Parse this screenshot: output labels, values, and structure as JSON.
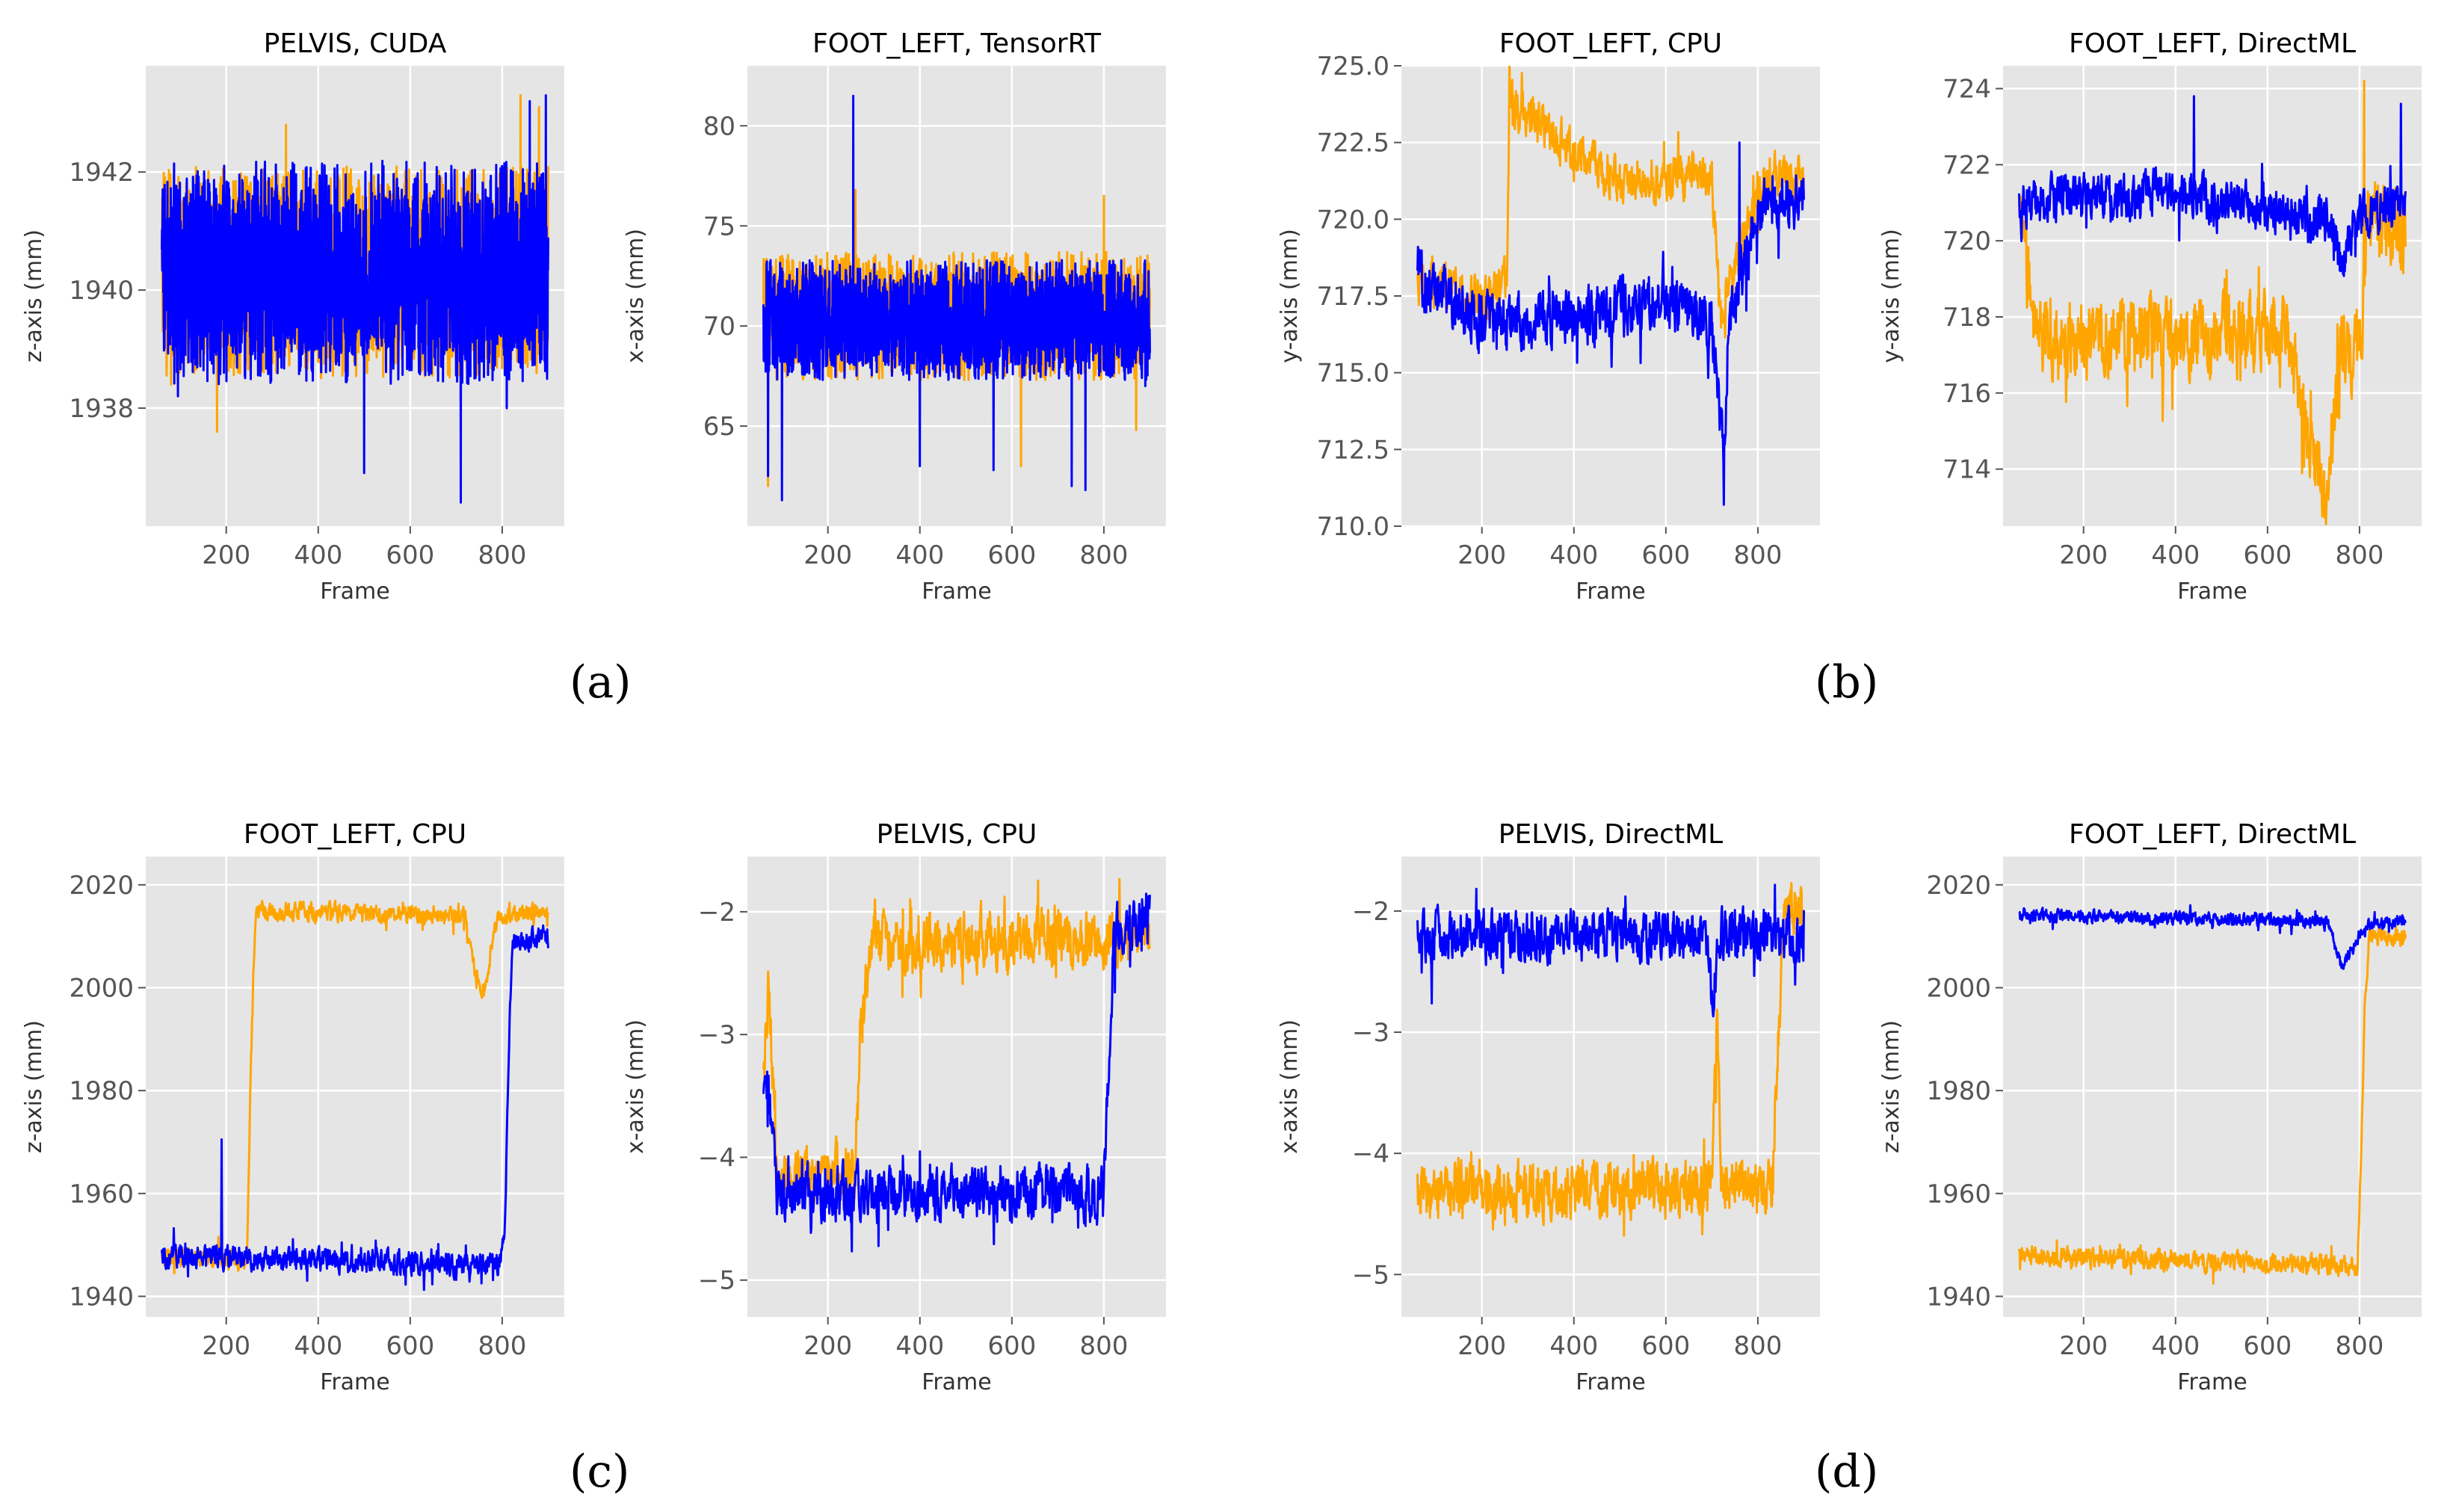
{
  "colors": {
    "orange": "#ffa500",
    "blue": "#0000ff",
    "panel_bg": "#e5e5e5",
    "grid": "#ffffff",
    "tick_text": "#555555",
    "label_text": "#333333"
  },
  "captions": [
    "(a)",
    "(b)",
    "(c)",
    "(d)"
  ],
  "chart_data": [
    {
      "type": "line",
      "title": "PELVIS, CUDA",
      "xlabel": "Frame",
      "ylabel": "z-axis (mm)",
      "xlim": [
        25,
        935
      ],
      "ylim": [
        1936,
        1943.8
      ],
      "xticks": [
        200,
        400,
        600,
        800
      ],
      "yticks": [
        1938,
        1940,
        1942
      ],
      "ytick_labels": [
        "1938",
        "1940",
        "1942"
      ],
      "series": [
        {
          "name": "orange",
          "color": "#ffa500",
          "style": "dense",
          "x_range": [
            60,
            900
          ],
          "base": 1940.3,
          "amp": 1.8,
          "spikes": [
            [
              80,
              1938.4
            ],
            [
              180,
              1937.6
            ],
            [
              330,
              1942.8
            ],
            [
              840,
              1943.3
            ],
            [
              880,
              1943.1
            ]
          ]
        },
        {
          "name": "blue",
          "color": "#0000ff",
          "style": "dense",
          "x_range": [
            60,
            900
          ],
          "base": 1940.3,
          "amp": 1.9,
          "spikes": [
            [
              95,
              1938.2
            ],
            [
              500,
              1936.9
            ],
            [
              710,
              1936.4
            ],
            [
              810,
              1938.0
            ],
            [
              860,
              1943.2
            ],
            [
              895,
              1943.3
            ]
          ]
        }
      ]
    },
    {
      "type": "line",
      "title": "FOOT_LEFT, TensorRT",
      "xlabel": "Frame",
      "ylabel": "x-axis (mm)",
      "xlim": [
        25,
        935
      ],
      "ylim": [
        60,
        83
      ],
      "xticks": [
        200,
        400,
        600,
        800
      ],
      "yticks": [
        65,
        70,
        75,
        80
      ],
      "ytick_labels": [
        "65",
        "70",
        "75",
        "80"
      ],
      "series": [
        {
          "name": "orange",
          "color": "#ffa500",
          "style": "dense",
          "x_range": [
            60,
            900
          ],
          "base": 70.5,
          "amp": 3.2,
          "spikes": [
            [
              70,
              62.0
            ],
            [
              260,
              76.8
            ],
            [
              620,
              63.0
            ],
            [
              800,
              76.5
            ],
            [
              870,
              64.8
            ]
          ]
        },
        {
          "name": "blue",
          "color": "#0000ff",
          "style": "dense",
          "x_range": [
            60,
            900
          ],
          "base": 70.3,
          "amp": 3.0,
          "spikes": [
            [
              70,
              62.5
            ],
            [
              100,
              61.3
            ],
            [
              255,
              81.5
            ],
            [
              400,
              63.0
            ],
            [
              560,
              62.8
            ],
            [
              730,
              62.0
            ],
            [
              760,
              61.8
            ],
            [
              890,
              67.0
            ]
          ]
        }
      ]
    },
    {
      "type": "line",
      "title": "FOOT_LEFT, CPU",
      "xlabel": "Frame",
      "ylabel": "y-axis (mm)",
      "xlim": [
        25,
        935
      ],
      "ylim": [
        710,
        725
      ],
      "xticks": [
        200,
        400,
        600,
        800
      ],
      "yticks": [
        710,
        712.5,
        715,
        717.5,
        720,
        722.5,
        725
      ],
      "ytick_labels": [
        "710.0",
        "712.5",
        "715.0",
        "717.5",
        "720.0",
        "722.5",
        "725.0"
      ],
      "series": [
        {
          "name": "orange",
          "color": "#ffa500",
          "style": "noisy",
          "x": [
            60,
            200,
            255,
            260,
            500,
            700,
            720,
            740,
            820,
            900
          ],
          "y": [
            718,
            717.5,
            718,
            723.8,
            721.2,
            721.4,
            716.5,
            718,
            721.5,
            721.3
          ],
          "amp": 1.3
        },
        {
          "name": "blue",
          "color": "#0000ff",
          "style": "noisy",
          "x": [
            60,
            200,
            400,
            600,
            700,
            725,
            740,
            800,
            900
          ],
          "y": [
            718,
            716.8,
            716.8,
            717.2,
            716.8,
            712,
            716.8,
            720.5,
            720.8
          ],
          "amp": 1.7,
          "spikes": [
            [
              726,
              710.7
            ],
            [
              760,
              722.5
            ]
          ]
        }
      ]
    },
    {
      "type": "line",
      "title": "FOOT_LEFT, DirectML",
      "xlabel": "Frame",
      "ylabel": "y-axis (mm)",
      "xlim": [
        25,
        935
      ],
      "ylim": [
        712.5,
        724.6
      ],
      "xticks": [
        200,
        400,
        600,
        800
      ],
      "yticks": [
        714,
        716,
        718,
        720,
        722,
        724
      ],
      "ytick_labels": [
        "714",
        "716",
        "718",
        "720",
        "722",
        "724"
      ],
      "series": [
        {
          "name": "orange",
          "color": "#ffa500",
          "style": "noisy",
          "x": [
            60,
            100,
            400,
            650,
            700,
            730,
            760,
            800,
            820,
            900
          ],
          "y": [
            720.5,
            717.5,
            717.5,
            717.5,
            714,
            713.5,
            717,
            717,
            721,
            720.2
          ],
          "amp": 1.9,
          "spikes": [
            [
              720,
              712.8
            ],
            [
              810,
              724.2
            ]
          ]
        },
        {
          "name": "blue",
          "color": "#0000ff",
          "style": "noisy",
          "x": [
            60,
            400,
            740,
            760,
            790,
            900
          ],
          "y": [
            721,
            721.3,
            720.5,
            719.2,
            720.5,
            721.2
          ],
          "amp": 1.1,
          "spikes": [
            [
              440,
              723.8
            ],
            [
              890,
              723.6
            ]
          ]
        }
      ]
    },
    {
      "type": "line",
      "title": "FOOT_LEFT, CPU",
      "xlabel": "Frame",
      "ylabel": "z-axis (mm)",
      "xlim": [
        25,
        935
      ],
      "ylim": [
        1936,
        2025.5
      ],
      "xticks": [
        200,
        400,
        600,
        800
      ],
      "yticks": [
        1940,
        1960,
        1980,
        2000,
        2020
      ],
      "ytick_labels": [
        "1940",
        "1960",
        "1980",
        "2000",
        "2020"
      ],
      "series": [
        {
          "name": "orange",
          "color": "#ffa500",
          "style": "noisy",
          "x": [
            60,
            245,
            250,
            258,
            265,
            720,
            735,
            760,
            790,
            900
          ],
          "y": [
            1948,
            1947,
            1970,
            2000,
            2015,
            2014,
            2005,
            1999,
            2014,
            2015
          ],
          "amp": 3.2
        },
        {
          "name": "blue",
          "color": "#0000ff",
          "style": "noisy",
          "x": [
            60,
            790,
            805,
            815,
            822,
            900
          ],
          "y": [
            1948,
            1946,
            1950,
            1990,
            2008,
            2010
          ],
          "amp": 4.2,
          "spikes": [
            [
              190,
              1970.5
            ]
          ]
        }
      ]
    },
    {
      "type": "line",
      "title": "PELVIS, CPU",
      "xlabel": "Frame",
      "ylabel": "x-axis (mm)",
      "xlim": [
        25,
        935
      ],
      "ylim": [
        -5.3,
        -1.55
      ],
      "xticks": [
        200,
        400,
        600,
        800
      ],
      "yticks": [
        -5,
        -4,
        -3,
        -2
      ],
      "ytick_labels": [
        "−5",
        "−4",
        "−3",
        "−2"
      ],
      "series": [
        {
          "name": "orange",
          "color": "#ffa500",
          "style": "noisy",
          "x": [
            60,
            70,
            90,
            260,
            270,
            290,
            880,
            900
          ],
          "y": [
            -3.4,
            -2.6,
            -4.2,
            -4.1,
            -3.1,
            -2.25,
            -2.2,
            -2.15
          ],
          "amp": 0.42
        },
        {
          "name": "blue",
          "color": "#0000ff",
          "style": "noisy",
          "x": [
            60,
            68,
            90,
            800,
            808,
            822,
            900
          ],
          "y": [
            -3.6,
            -3.4,
            -4.3,
            -4.3,
            -3.5,
            -2.2,
            -2.05
          ],
          "amp": 0.4
        }
      ]
    },
    {
      "type": "line",
      "title": "PELVIS, DirectML",
      "xlabel": "Frame",
      "ylabel": "x-axis (mm)",
      "xlim": [
        25,
        935
      ],
      "ylim": [
        -5.35,
        -1.55
      ],
      "xticks": [
        200,
        400,
        600,
        800
      ],
      "yticks": [
        -5,
        -4,
        -3,
        -2
      ],
      "ytick_labels": [
        "−5",
        "−4",
        "−3",
        "−2"
      ],
      "series": [
        {
          "name": "orange",
          "color": "#ffa500",
          "style": "noisy",
          "x": [
            60,
            700,
            712,
            720,
            760,
            830,
            850,
            860,
            900
          ],
          "y": [
            -4.3,
            -4.3,
            -2.7,
            -4.2,
            -4.2,
            -4.3,
            -2.6,
            -2.0,
            -1.9
          ],
          "amp": 0.42
        },
        {
          "name": "blue",
          "color": "#0000ff",
          "style": "noisy",
          "x": [
            60,
            690,
            700,
            720,
            900
          ],
          "y": [
            -2.2,
            -2.2,
            -2.7,
            -2.2,
            -2.2
          ],
          "amp": 0.38
        }
      ]
    },
    {
      "type": "line",
      "title": "FOOT_LEFT, DirectML",
      "xlabel": "Frame",
      "ylabel": "z-axis (mm)",
      "xlim": [
        25,
        935
      ],
      "ylim": [
        1936,
        2025.5
      ],
      "xticks": [
        200,
        400,
        600,
        800
      ],
      "yticks": [
        1940,
        1960,
        1980,
        2000,
        2020
      ],
      "ytick_labels": [
        "1940",
        "1960",
        "1980",
        "2000",
        "2020"
      ],
      "series": [
        {
          "name": "orange",
          "color": "#ffa500",
          "style": "noisy",
          "x": [
            60,
            795,
            803,
            812,
            822,
            900
          ],
          "y": [
            1948,
            1946,
            1965,
            1998,
            2010,
            2010
          ],
          "amp": 3.5
        },
        {
          "name": "blue",
          "color": "#0000ff",
          "style": "noisy",
          "x": [
            60,
            730,
            760,
            790,
            820,
            900
          ],
          "y": [
            2014,
            2013,
            2004,
            2008,
            2012,
            2013
          ],
          "amp": 2.3
        }
      ]
    }
  ]
}
